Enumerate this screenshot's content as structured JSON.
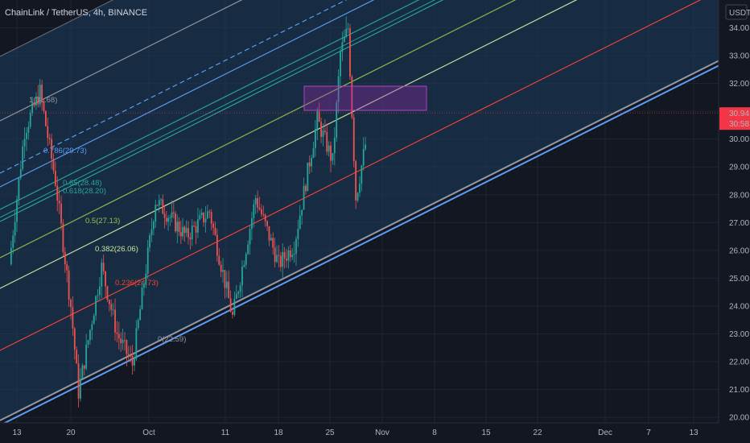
{
  "header": {
    "title": "ChainLink / TetherUS, 4h, BINANCE"
  },
  "price_axis": {
    "currency": "USDT",
    "ticks": [
      "34.00",
      "33.00",
      "32.00",
      "31.00",
      "30.00",
      "29.00",
      "28.00",
      "27.00",
      "26.00",
      "25.00",
      "24.00",
      "23.00",
      "22.00",
      "21.00",
      "20.00"
    ],
    "last_price": "30.94",
    "countdown": "30:58"
  },
  "time_axis": {
    "ticks": [
      "13",
      "20",
      "Oct",
      "11",
      "18",
      "25",
      "Nov",
      "8",
      "15",
      "22",
      "Dec",
      "7",
      "13"
    ]
  },
  "fib_levels": [
    {
      "label": "1(31.68)",
      "ratio": 1,
      "color": "#9598a1"
    },
    {
      "label": "0.786(29.73)",
      "ratio": 0.786,
      "color": "#5b9cf6"
    },
    {
      "label": "0.65(28.48)",
      "ratio": 0.65,
      "color": "#26a69a"
    },
    {
      "label": "0.618(28.20)",
      "ratio": 0.618,
      "color": "#26a69a"
    },
    {
      "label": "0.5(27.13)",
      "ratio": 0.5,
      "color": "#8bc34a"
    },
    {
      "label": "0.382(26.06)",
      "ratio": 0.382,
      "color": "#c8e6a0"
    },
    {
      "label": "0.236(24.73)",
      "ratio": 0.236,
      "color": "#f44336"
    },
    {
      "label": "0(22.59)",
      "ratio": 0,
      "color": "#9598a1"
    }
  ],
  "colors": {
    "background": "#131722",
    "channel_fill": "#1c3d5e",
    "bull": "#26a69a",
    "bear": "#ef5350",
    "zone_fill": "#9c27b0",
    "price_tag": "#f23645",
    "grid": "#1f2530"
  },
  "chart_data": {
    "type": "candlestick",
    "symbol": "ChainLink / TetherUS",
    "interval": "4h",
    "exchange": "BINANCE",
    "ylim": [
      19.8,
      35.0
    ],
    "last_price": 30.94,
    "x_ticks": [
      "13",
      "20",
      "Oct",
      "11",
      "18",
      "25",
      "Nov",
      "8",
      "15",
      "22",
      "Dec",
      "7",
      "13"
    ],
    "y_ticks": [
      20,
      21,
      22,
      23,
      24,
      25,
      26,
      27,
      28,
      29,
      30,
      31,
      32,
      33,
      34
    ],
    "swing_points": [
      {
        "x": "Sep 12",
        "y": 25.5
      },
      {
        "x": "Sep 14",
        "y": 30.3
      },
      {
        "x": "Sep 16",
        "y": 31.7
      },
      {
        "x": "Sep 18",
        "y": 28.5
      },
      {
        "x": "Sep 20",
        "y": 24.0
      },
      {
        "x": "Sep 21",
        "y": 20.9
      },
      {
        "x": "Sep 24",
        "y": 25.4
      },
      {
        "x": "Sep 26",
        "y": 23.0
      },
      {
        "x": "Sep 28",
        "y": 21.9
      },
      {
        "x": "Oct 1",
        "y": 27.8
      },
      {
        "x": "Oct 5",
        "y": 26.5
      },
      {
        "x": "Oct 8",
        "y": 27.4
      },
      {
        "x": "Oct 11",
        "y": 23.6
      },
      {
        "x": "Oct 14",
        "y": 27.9
      },
      {
        "x": "Oct 17",
        "y": 25.5
      },
      {
        "x": "Oct 19",
        "y": 26.2
      },
      {
        "x": "Oct 22",
        "y": 30.7
      },
      {
        "x": "Oct 24",
        "y": 29.2
      },
      {
        "x": "Oct 25",
        "y": 33.1
      },
      {
        "x": "Oct 26",
        "y": 34.0
      },
      {
        "x": "Oct 27",
        "y": 27.9
      },
      {
        "x": "Oct 29",
        "y": 30.94
      }
    ]
  }
}
